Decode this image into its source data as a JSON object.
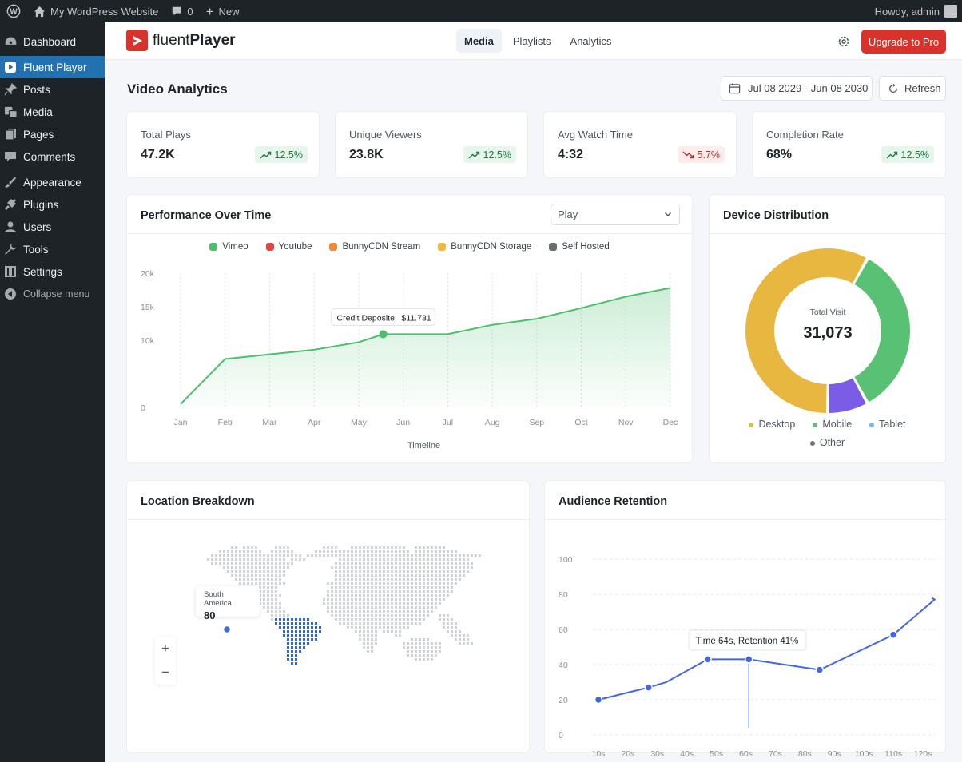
{
  "adminbar": {
    "site_name": "My WordPress Website",
    "comments_count": "0",
    "new_label": "New",
    "greeting": "Howdy, admin"
  },
  "sidebar": {
    "items": [
      {
        "label": "Dashboard",
        "icon": "dashboard-icon"
      },
      {
        "label": "Fluent Player",
        "icon": "play-icon",
        "active": true
      },
      {
        "label": "Posts",
        "icon": "pin-icon"
      },
      {
        "label": "Media",
        "icon": "media-icon"
      },
      {
        "label": "Pages",
        "icon": "pages-icon"
      },
      {
        "label": "Comments",
        "icon": "comment-icon"
      },
      {
        "label": "Appearance",
        "icon": "brush-icon"
      },
      {
        "label": "Plugins",
        "icon": "plugin-icon"
      },
      {
        "label": "Users",
        "icon": "user-icon"
      },
      {
        "label": "Tools",
        "icon": "wrench-icon"
      },
      {
        "label": "Settings",
        "icon": "settings-icon"
      },
      {
        "label": "Collapse menu",
        "icon": "collapse-icon"
      }
    ]
  },
  "topnav": {
    "logo_light": "fluent",
    "logo_bold": "Player",
    "tabs": [
      "Media",
      "Playlists",
      "Analytics"
    ],
    "active_tab": "Media",
    "upgrade_label": "Upgrade to Pro"
  },
  "page": {
    "title": "Video Analytics",
    "date_range": "Jul 08 2029 - Jun 08 2030",
    "refresh_label": "Refresh"
  },
  "stats": [
    {
      "label": "Total Plays",
      "value": "47.2K",
      "change": "12.5%",
      "trend": "up"
    },
    {
      "label": "Unique Viewers",
      "value": "23.8K",
      "change": "12.5%",
      "trend": "up"
    },
    {
      "label": "Avg Watch Time",
      "value": "4:32",
      "change": "5.7%",
      "trend": "down"
    },
    {
      "label": "Completion Rate",
      "value": "68%",
      "change": "12.5%",
      "trend": "up"
    }
  ],
  "colors": {
    "accent": "#d9322a",
    "wp_blue": "#2271b1",
    "up": "#1d7a40",
    "down": "#c92a2a",
    "vimeo": "#4cbf6e",
    "youtube": "#e04848",
    "bunny_stream": "#ee8a3a",
    "bunny_storage": "#efb83e",
    "self_hosted": "#6b6e73"
  },
  "performance": {
    "title": "Performance Over Time",
    "select_value": "Play",
    "tooltip_label": "Credit Deposite",
    "tooltip_value": "$11.731"
  },
  "device": {
    "title": "Device Distribution",
    "center_label": "Total Visit",
    "center_value": "31,073"
  },
  "location": {
    "title": "Location Breakdown",
    "tooltip_region": "South America",
    "tooltip_value": "80",
    "zoom_in": "+",
    "zoom_out": "−"
  },
  "retention": {
    "title": "Audience Retention",
    "tooltip": "Time 64s, Retention 41%"
  },
  "chart_data": [
    {
      "type": "area",
      "title": "Performance Over Time",
      "xlabel": "Timeline",
      "ylabel": "",
      "categories": [
        "Jan",
        "Feb",
        "Mar",
        "Apr",
        "May",
        "Jun",
        "Jul",
        "Aug",
        "Sep",
        "Oct",
        "Nov",
        "Dec"
      ],
      "yticks": [
        "0",
        "10k",
        "15k",
        "20k"
      ],
      "ylim": [
        0,
        20000
      ],
      "legend": [
        "Vimeo",
        "Youtube",
        "BunnyCDN Stream",
        "BunnyCDN Storage",
        "Self Hosted"
      ],
      "legend_placement": "top",
      "grid": "vertical-dotted",
      "series": [
        {
          "name": "Vimeo",
          "x": [
            0,
            1,
            2,
            3,
            4,
            4.55,
            5,
            6,
            7,
            8,
            9,
            10,
            11
          ],
          "values": [
            500,
            7200,
            7900,
            8600,
            9700,
            10900,
            10900,
            10900,
            12300,
            13200,
            14800,
            16500,
            17800
          ]
        }
      ]
    },
    {
      "type": "pie",
      "variant": "donut",
      "title": "Device Distribution",
      "labels": [
        "Desktop",
        "Mobile",
        "Tablet",
        "Other"
      ],
      "values": [
        58,
        34,
        8,
        0
      ],
      "colors": [
        "#e8b73f",
        "#58c173",
        "#7b5ce6",
        "#6b6e73"
      ],
      "legend_colors": [
        "#e8b73f",
        "#58c173",
        "#6cbbe8",
        "#6b6e73"
      ],
      "legend_placement": "bottom"
    },
    {
      "type": "line",
      "title": "Audience Retention",
      "categories": [
        "10s",
        "20s",
        "30s",
        "40s",
        "50s",
        "60s",
        "70s",
        "80s",
        "90s",
        "100s",
        "110s",
        "120s"
      ],
      "yticks": [
        "0",
        "20",
        "40",
        "60",
        "80",
        "100"
      ],
      "ylim": [
        0,
        100
      ],
      "grid": "horizontal-dashed",
      "series": [
        {
          "name": "",
          "x": [
            10,
            27,
            33,
            47,
            61,
            85,
            110,
            124
          ],
          "values": [
            20,
            27,
            30,
            43,
            43,
            37,
            57,
            77
          ],
          "markers": [
            true,
            true,
            false,
            true,
            true,
            true,
            true,
            false
          ]
        }
      ]
    }
  ]
}
